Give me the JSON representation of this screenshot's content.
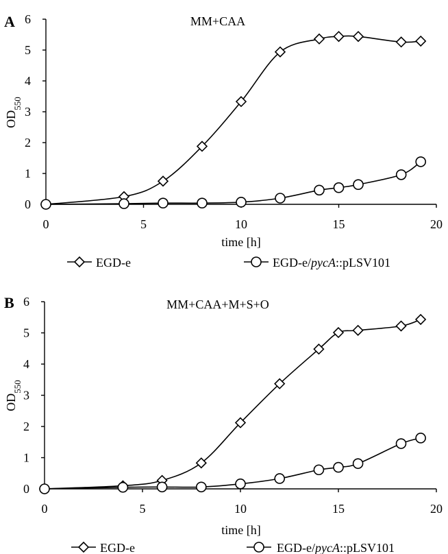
{
  "chart_data": [
    {
      "type": "line",
      "panel_letter": "A",
      "title": "MM+CAA",
      "xlabel": "time [h]",
      "ylabel": "OD",
      "ylabel_sub": "550",
      "xlim": [
        0,
        20
      ],
      "ylim": [
        0,
        6
      ],
      "x_ticks": [
        "0",
        "5",
        "10",
        "15",
        "20"
      ],
      "y_ticks": [
        "0",
        "1",
        "2",
        "3",
        "4",
        "5",
        "6"
      ],
      "grid": false,
      "legend_position": "bottom",
      "series": [
        {
          "name": "EGD-e",
          "marker": "diamond",
          "x": [
            0,
            4,
            6,
            8,
            10,
            12,
            14,
            15,
            16,
            18.2,
            19.2
          ],
          "y": [
            0,
            0.25,
            0.75,
            1.88,
            3.33,
            4.94,
            5.36,
            5.44,
            5.44,
            5.26,
            5.29
          ]
        },
        {
          "name_prefix": "EGD-e/",
          "name_italic": "pycA",
          "name_suffix": "::pLSV101",
          "marker": "circle",
          "x": [
            0,
            4,
            6,
            8,
            10,
            12,
            14,
            15,
            16,
            18.2,
            19.2
          ],
          "y": [
            0,
            0.02,
            0.04,
            0.04,
            0.07,
            0.2,
            0.46,
            0.54,
            0.64,
            0.96,
            1.38
          ]
        }
      ]
    },
    {
      "type": "line",
      "panel_letter": "B",
      "title": "MM+CAA+M+S+O",
      "xlabel": "time [h]",
      "ylabel": "OD",
      "ylabel_sub": "550",
      "xlim": [
        0,
        20
      ],
      "ylim": [
        0,
        6
      ],
      "x_ticks": [
        "0",
        "5",
        "10",
        "15",
        "20"
      ],
      "y_ticks": [
        "0",
        "1",
        "2",
        "3",
        "4",
        "5",
        "6"
      ],
      "grid": false,
      "legend_position": "bottom",
      "series": [
        {
          "name": "EGD-e",
          "marker": "diamond",
          "x": [
            0,
            4,
            6,
            8,
            10,
            12,
            14,
            15,
            16,
            18.2,
            19.2
          ],
          "y": [
            0,
            0.1,
            0.27,
            0.83,
            2.12,
            3.37,
            4.48,
            5.01,
            5.08,
            5.22,
            5.43
          ]
        },
        {
          "name_prefix": "EGD-e/",
          "name_italic": "pycA",
          "name_suffix": "::pLSV101",
          "marker": "circle",
          "x": [
            0,
            4,
            6,
            8,
            10,
            12,
            14,
            15,
            16,
            18.2,
            19.2
          ],
          "y": [
            0,
            0.05,
            0.06,
            0.06,
            0.16,
            0.33,
            0.61,
            0.69,
            0.81,
            1.45,
            1.63
          ]
        }
      ]
    }
  ]
}
